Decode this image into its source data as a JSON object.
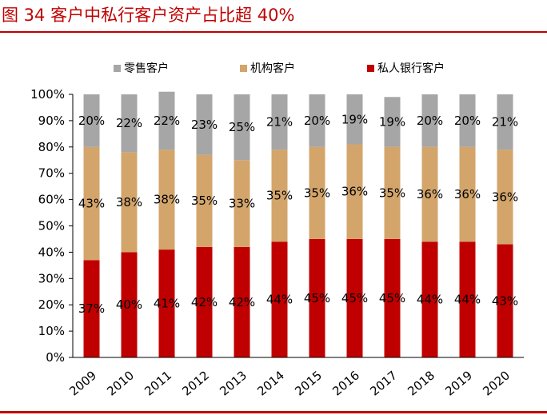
{
  "figure": {
    "title": "图 34   客户中私行客户资产占比超 40%"
  },
  "chart_data": {
    "type": "bar",
    "stacked": true,
    "categories": [
      "2009",
      "2010",
      "2011",
      "2012",
      "2013",
      "2014",
      "2015",
      "2016",
      "2017",
      "2018",
      "2019",
      "2020"
    ],
    "series": [
      {
        "name": "私人银行客户",
        "color": "#c00000",
        "values": [
          37,
          40,
          41,
          42,
          42,
          44,
          45,
          45,
          45,
          44,
          44,
          43
        ],
        "labels": [
          "37%",
          "40%",
          "41%",
          "42%",
          "42%",
          "44%",
          "45%",
          "45%",
          "45%",
          "44%",
          "44%",
          "43%"
        ]
      },
      {
        "name": "机构客户",
        "color": "#d3a56b",
        "values": [
          43,
          38,
          38,
          35,
          33,
          35,
          35,
          36,
          35,
          36,
          36,
          36
        ],
        "labels": [
          "43%",
          "38%",
          "38%",
          "35%",
          "33%",
          "35%",
          "35%",
          "36%",
          "35%",
          "36%",
          "36%",
          "36%"
        ]
      },
      {
        "name": "零售客户",
        "color": "#a6a6a6",
        "values": [
          20,
          22,
          22,
          23,
          25,
          21,
          20,
          19,
          19,
          20,
          20,
          21
        ],
        "labels": [
          "20%",
          "22%",
          "22%",
          "23%",
          "25%",
          "21%",
          "20%",
          "19%",
          "19%",
          "20%",
          "20%",
          "21%"
        ]
      }
    ],
    "legend_order": [
      "零售客户",
      "机构客户",
      "私人银行客户"
    ],
    "ylim": [
      0,
      100
    ],
    "yticks": [
      "0%",
      "10%",
      "20%",
      "30%",
      "40%",
      "50%",
      "60%",
      "70%",
      "80%",
      "90%",
      "100%"
    ],
    "legend": "top-center",
    "grid": false
  }
}
